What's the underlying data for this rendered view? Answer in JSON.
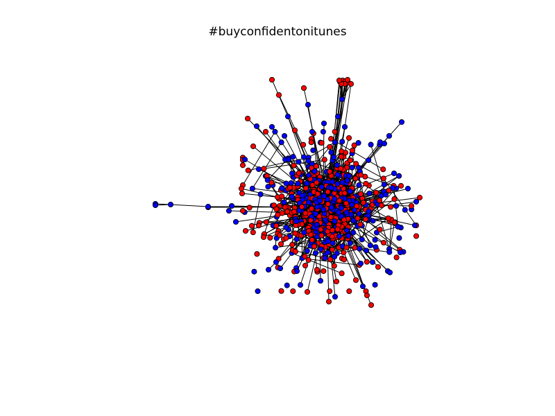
{
  "figure": {
    "title": "#buyconfidentonitunes"
  },
  "graph": {
    "node_colors": {
      "group_a": "#ff0000",
      "group_b": "#0000ff"
    },
    "edge_color": "#000000",
    "node_outline": "#000000",
    "background": "#ffffff"
  }
}
